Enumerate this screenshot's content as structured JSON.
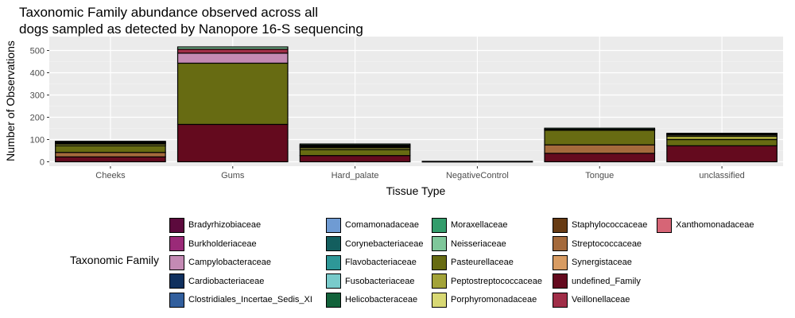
{
  "chart_data": {
    "type": "bar",
    "stacked": true,
    "title_lines": [
      "Taxonomic Family abundance observed across all",
      "dogs sampled as detected by Nanopore 16-S sequencing"
    ],
    "xlabel": "Tissue Type",
    "ylabel": "Number of Observations",
    "ylim": [
      0,
      520
    ],
    "yticks": [
      0,
      100,
      200,
      300,
      400,
      500
    ],
    "categories": [
      "Cheeks",
      "Gums",
      "Hard_palate",
      "NegativeControl",
      "Tongue",
      "unclassified"
    ],
    "legend_title": "Taxonomic Family",
    "legend_position": "bottom",
    "legend": [
      {
        "name": "Bradyrhizobiaceae",
        "color": "#5c0a3d"
      },
      {
        "name": "Burkholderiaceae",
        "color": "#9a2a78"
      },
      {
        "name": "Campylobacteraceae",
        "color": "#c48ab4"
      },
      {
        "name": "Cardiobacteriaceae",
        "color": "#10305e"
      },
      {
        "name": "Clostridiales_Incertae_Sedis_XI",
        "color": "#325f9d"
      },
      {
        "name": "Comamonadaceae",
        "color": "#6f9bd3"
      },
      {
        "name": "Corynebacteriaceae",
        "color": "#135e5e"
      },
      {
        "name": "Flavobacteriaceae",
        "color": "#2e9898"
      },
      {
        "name": "Fusobacteriaceae",
        "color": "#79cbcb"
      },
      {
        "name": "Helicobacteraceae",
        "color": "#12623a"
      },
      {
        "name": "Moraxellaceae",
        "color": "#339c6b"
      },
      {
        "name": "Neisseriaceae",
        "color": "#7fc79a"
      },
      {
        "name": "Pasteurellaceae",
        "color": "#676b12"
      },
      {
        "name": "Peptostreptococcaceae",
        "color": "#a3a339"
      },
      {
        "name": "Porphyromonadaceae",
        "color": "#d8d874"
      },
      {
        "name": "Staphylococcaceae",
        "color": "#673b14"
      },
      {
        "name": "Streptococcaceae",
        "color": "#a46a3c"
      },
      {
        "name": "Synergistaceae",
        "color": "#d89c63"
      },
      {
        "name": "undefined_Family",
        "color": "#640a1e"
      },
      {
        "name": "Veillonellaceae",
        "color": "#a02e48"
      },
      {
        "name": "Xanthomonadaceae",
        "color": "#d66576"
      }
    ],
    "series": [
      {
        "name": "undefined_Family",
        "values": [
          22,
          168,
          28,
          1,
          38,
          72
        ]
      },
      {
        "name": "Streptococcaceae",
        "values": [
          20,
          0,
          0,
          0,
          38,
          0
        ]
      },
      {
        "name": "Pasteurellaceae",
        "values": [
          30,
          275,
          27,
          0,
          66,
          28
        ]
      },
      {
        "name": "Peptostreptococcaceae",
        "values": [
          8,
          0,
          8,
          0,
          0,
          15
        ]
      },
      {
        "name": "Porphyromonadaceae",
        "values": [
          4,
          0,
          4,
          0,
          0,
          5
        ]
      },
      {
        "name": "Campylobacteraceae",
        "values": [
          3,
          45,
          4,
          0,
          2,
          3
        ]
      },
      {
        "name": "Veillonellaceae",
        "values": [
          3,
          18,
          4,
          0,
          2,
          3
        ]
      },
      {
        "name": "Neisseriaceae",
        "values": [
          2,
          10,
          5,
          1,
          5,
          2
        ]
      }
    ]
  }
}
